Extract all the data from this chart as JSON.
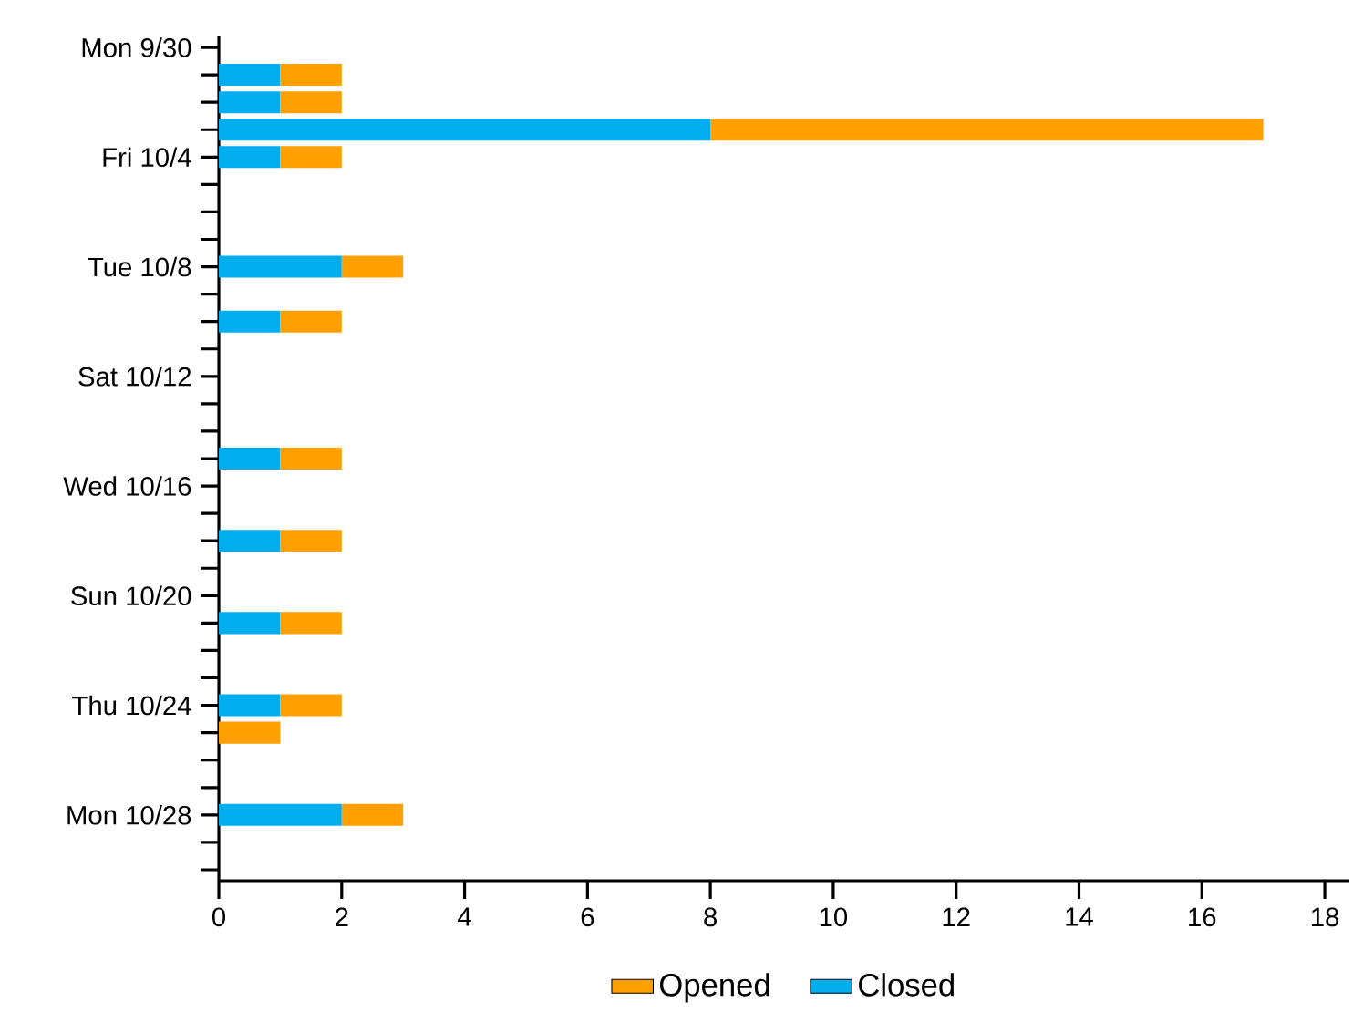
{
  "chart_data": {
    "type": "bar",
    "orientation": "horizontal",
    "stacked": true,
    "categories": [
      "Mon 9/30",
      null,
      null,
      null,
      "Fri 10/4",
      null,
      null,
      null,
      "Tue 10/8",
      null,
      null,
      null,
      "Sat 10/12",
      null,
      null,
      null,
      "Wed 10/16",
      null,
      null,
      null,
      "Sun 10/20",
      null,
      null,
      null,
      "Thu 10/24",
      null,
      null,
      null,
      "Mon 10/28",
      null,
      null
    ],
    "series": [
      {
        "name": "Closed",
        "color": "#00aeef",
        "values": [
          null,
          1,
          1,
          8,
          1,
          null,
          null,
          null,
          2,
          null,
          1,
          null,
          null,
          null,
          null,
          1,
          null,
          null,
          1,
          null,
          null,
          1,
          null,
          null,
          1,
          null,
          null,
          null,
          2,
          null,
          null
        ]
      },
      {
        "name": "Opened",
        "color": "#ff9f00",
        "values": [
          null,
          1,
          1,
          9,
          1,
          null,
          null,
          null,
          1,
          null,
          1,
          null,
          null,
          null,
          null,
          1,
          null,
          null,
          1,
          null,
          null,
          1,
          null,
          null,
          1,
          1,
          null,
          null,
          1,
          null,
          null
        ]
      }
    ],
    "xlim": [
      0,
      18.4
    ],
    "xticks": [
      0,
      2,
      4,
      6,
      8,
      10,
      12,
      14,
      16,
      18
    ],
    "legend": "bottom"
  }
}
